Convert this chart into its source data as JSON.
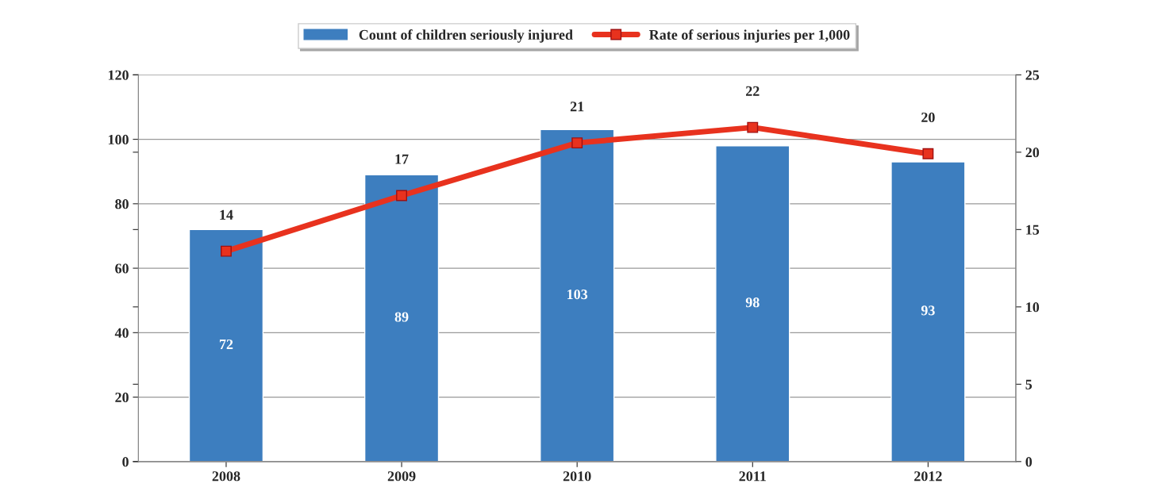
{
  "chart_data": {
    "type": "bar",
    "categories": [
      "2008",
      "2009",
      "2010",
      "2011",
      "2012"
    ],
    "series": [
      {
        "name": "Count of children seriously injured",
        "color": "#3d7ebf",
        "values": [
          72,
          89,
          103,
          98,
          93
        ],
        "data_labels": true
      },
      {
        "name": "Rate of serious injuries per 1,000",
        "type": "line",
        "axis": "y2",
        "color": "#e8321e",
        "marker": "square",
        "values": [
          13.6,
          17.2,
          20.6,
          21.6,
          19.9
        ],
        "value_labels": [
          "14",
          "17",
          "21",
          "22",
          "20"
        ]
      }
    ],
    "ylim": [
      0,
      120
    ],
    "yticks": [
      0,
      20,
      40,
      60,
      80,
      100,
      120
    ],
    "y2lim": [
      0,
      25
    ],
    "y2ticks": [
      0,
      5,
      10,
      15,
      20,
      25
    ],
    "grid": "y",
    "legend": "top"
  }
}
